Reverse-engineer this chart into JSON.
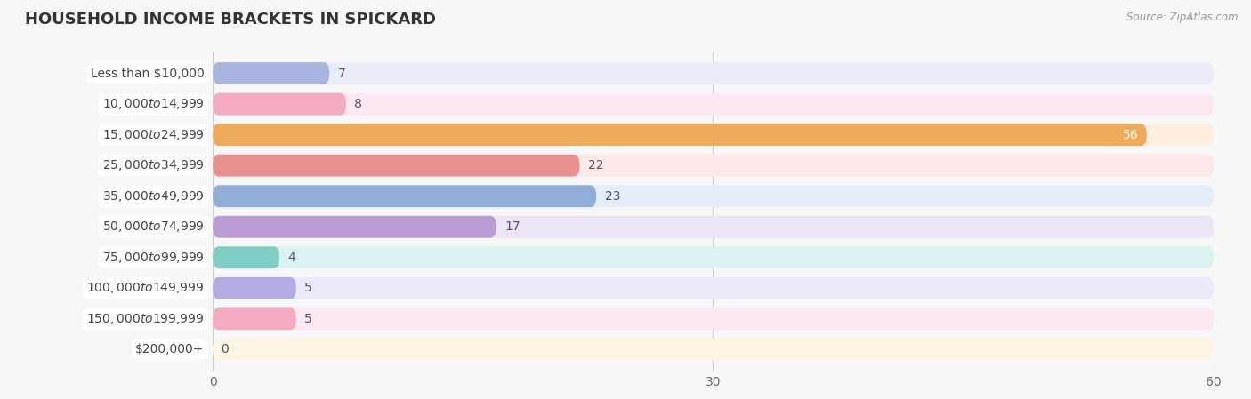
{
  "title": "HOUSEHOLD INCOME BRACKETS IN SPICKARD",
  "source": "Source: ZipAtlas.com",
  "categories": [
    "Less than $10,000",
    "$10,000 to $14,999",
    "$15,000 to $24,999",
    "$25,000 to $34,999",
    "$35,000 to $49,999",
    "$50,000 to $74,999",
    "$75,000 to $99,999",
    "$100,000 to $149,999",
    "$150,000 to $199,999",
    "$200,000+"
  ],
  "values": [
    7,
    8,
    56,
    22,
    23,
    17,
    4,
    5,
    5,
    0
  ],
  "bar_colors": [
    "#aab4e0",
    "#f4aac0",
    "#f0aa5c",
    "#e89090",
    "#90aed8",
    "#bc9cd4",
    "#7ecec6",
    "#b4aae4",
    "#f4aac0",
    "#f8d4a8"
  ],
  "bar_bg_colors": [
    "#eaecf8",
    "#fce8f2",
    "#fdf0e0",
    "#fde8e8",
    "#e4eef8",
    "#ede4f6",
    "#daf2f0",
    "#eceaf8",
    "#fce8f2",
    "#fef4e4"
  ],
  "row_bg_colors": [
    "#f0f0f8",
    "#fdf0f4",
    "#fef8f0",
    "#fdf4f4",
    "#f0f4fc",
    "#f6f0fc",
    "#f0faf8",
    "#f4f0fc",
    "#fdf0f4",
    "#fef8f0"
  ],
  "xlim": [
    0,
    60
  ],
  "xticks": [
    0,
    30,
    60
  ],
  "background_color": "#f7f7f7",
  "title_fontsize": 13,
  "label_fontsize": 10,
  "value_fontsize": 10
}
